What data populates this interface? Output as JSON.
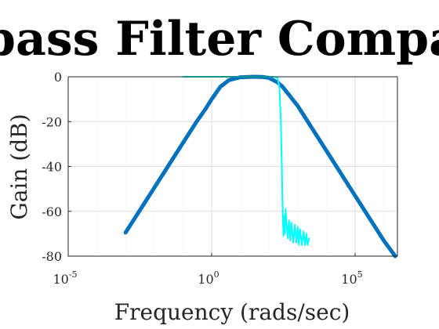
{
  "chart_data": {
    "type": "line",
    "title": "pass Filter Compa",
    "xlabel": "Frequency (rads/sec)",
    "ylabel": "Gain (dB)",
    "xscale": "log",
    "xlim": [
      1e-05,
      3000000
    ],
    "ylim": [
      -80,
      0
    ],
    "grid": true,
    "x_ticks": [
      {
        "base": "10",
        "exp": "-5",
        "value": 1e-05
      },
      {
        "base": "10",
        "exp": "0",
        "value": 1
      },
      {
        "base": "10",
        "exp": "5",
        "value": 100000
      }
    ],
    "y_ticks": [
      0,
      -20,
      -40,
      -60,
      -80
    ],
    "series": [
      {
        "color": "#0072BD",
        "width": 5,
        "x": [
          0.001,
          0.005,
          0.02,
          0.1,
          0.3,
          0.6,
          1,
          2,
          4,
          10,
          30,
          60,
          100,
          200,
          300,
          1000,
          10000,
          100000,
          1000000,
          2500000
        ],
        "y": [
          -69.5,
          -55.5,
          -43.5,
          -29.5,
          -20,
          -14.5,
          -10,
          -4.5,
          -1.5,
          -0.2,
          0,
          -0.1,
          -0.5,
          -2.5,
          -4.5,
          -13,
          -33,
          -53,
          -73,
          -80
        ]
      },
      {
        "color": "#00FFFF",
        "width": 2,
        "x": [
          0.1,
          1,
          10,
          50,
          150,
          200,
          230,
          260,
          280,
          300,
          320,
          340,
          360,
          380,
          400,
          450,
          500,
          550,
          600,
          700,
          800,
          900,
          1000,
          1100,
          1200,
          1400,
          1600,
          1800,
          2000,
          2200,
          2500
        ],
        "y": [
          0,
          0,
          0,
          0,
          0,
          -0.5,
          -5,
          -20,
          -40,
          -60,
          -71,
          -62,
          -70,
          -59,
          -64,
          -72,
          -64,
          -73,
          -65,
          -74,
          -66,
          -74,
          -67,
          -75,
          -68,
          -75,
          -69,
          -75,
          -70,
          -75,
          -72
        ]
      }
    ]
  }
}
